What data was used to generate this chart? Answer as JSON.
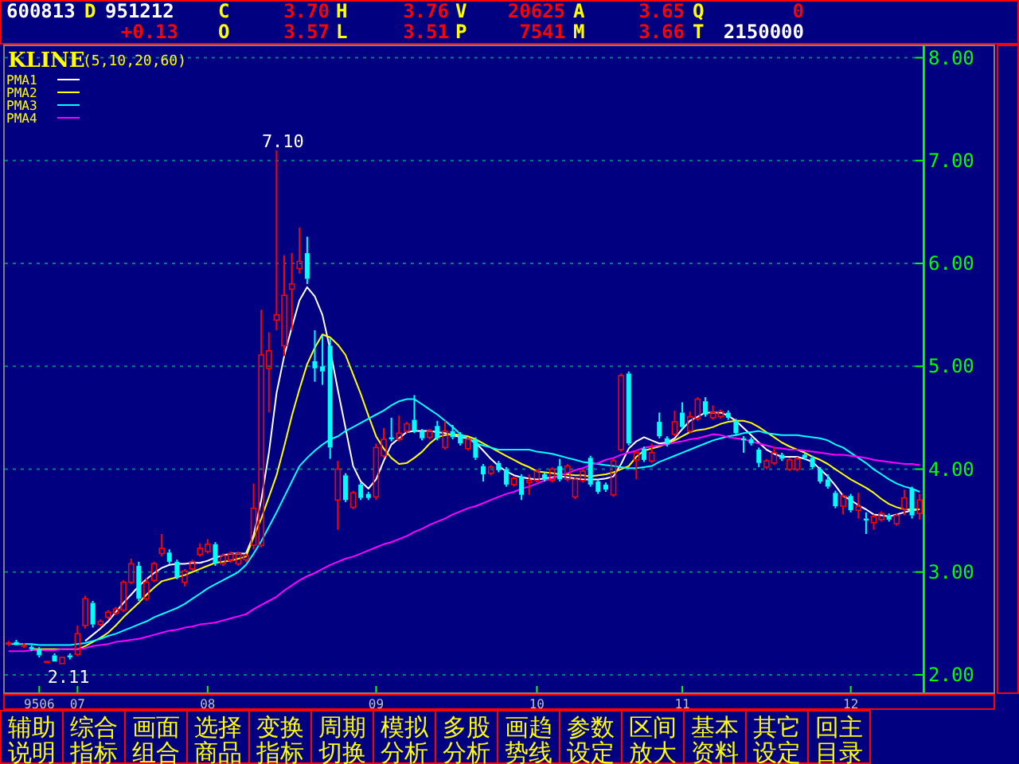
{
  "chart_data": {
    "type": "candlestick",
    "title": "KLINE",
    "subtitle": "(5,10,20,60)",
    "categories": [
      null,
      null,
      null,
      null,
      "9506",
      null,
      null,
      null,
      null,
      "07",
      null,
      null,
      null,
      null,
      null,
      null,
      null,
      null,
      null,
      null,
      null,
      null,
      null,
      null,
      null,
      null,
      "08",
      null,
      null,
      null,
      null,
      null,
      null,
      null,
      null,
      null,
      null,
      null,
      null,
      null,
      null,
      null,
      null,
      null,
      null,
      null,
      null,
      null,
      "09",
      null,
      null,
      null,
      null,
      null,
      null,
      null,
      null,
      null,
      null,
      null,
      null,
      null,
      null,
      null,
      null,
      null,
      null,
      null,
      null,
      "10",
      null,
      null,
      null,
      null,
      null,
      null,
      null,
      null,
      null,
      null,
      null,
      null,
      null,
      null,
      null,
      null,
      null,
      null,
      "11",
      null,
      null,
      null,
      null,
      null,
      null,
      null,
      null,
      null,
      null,
      null,
      null,
      null,
      null,
      null,
      null,
      null,
      null,
      null,
      null,
      null,
      "12",
      null,
      null,
      null,
      null,
      null,
      null,
      null,
      null,
      null
    ],
    "ohlc": [
      [
        2.3,
        2.33,
        2.28,
        2.31
      ],
      [
        2.32,
        2.34,
        2.28,
        2.29
      ],
      [
        2.28,
        2.31,
        2.26,
        2.29
      ],
      [
        2.27,
        2.29,
        2.23,
        2.25
      ],
      [
        2.25,
        2.27,
        2.17,
        2.19
      ],
      [
        2.12,
        2.14,
        2.12,
        2.13
      ],
      [
        2.19,
        2.21,
        2.12,
        2.13
      ],
      [
        2.11,
        2.18,
        2.11,
        2.17
      ],
      [
        2.19,
        2.21,
        2.15,
        2.17
      ],
      [
        2.2,
        2.48,
        2.18,
        2.4
      ],
      [
        2.48,
        2.77,
        2.45,
        2.74
      ],
      [
        2.7,
        2.72,
        2.46,
        2.49
      ],
      [
        2.49,
        2.54,
        2.47,
        2.52
      ],
      [
        2.56,
        2.63,
        2.54,
        2.61
      ],
      [
        2.6,
        2.66,
        2.58,
        2.64
      ],
      [
        2.63,
        2.92,
        2.61,
        2.9
      ],
      [
        2.9,
        3.13,
        2.88,
        3.08
      ],
      [
        3.06,
        3.1,
        2.72,
        2.74
      ],
      [
        2.74,
        2.94,
        2.72,
        2.9
      ],
      [
        2.92,
        3.1,
        2.9,
        3.08
      ],
      [
        3.18,
        3.37,
        3.15,
        3.23
      ],
      [
        3.19,
        3.22,
        3.08,
        3.1
      ],
      [
        3.1,
        3.12,
        2.93,
        2.95
      ],
      [
        2.9,
        3.03,
        2.86,
        3.01
      ],
      [
        3.03,
        3.12,
        3.01,
        3.1
      ],
      [
        3.17,
        3.28,
        3.15,
        3.23
      ],
      [
        3.2,
        3.32,
        3.18,
        3.27
      ],
      [
        3.27,
        3.29,
        3.06,
        3.08
      ],
      [
        3.08,
        3.18,
        3.06,
        3.16
      ],
      [
        3.11,
        3.2,
        3.09,
        3.18
      ],
      [
        3.08,
        3.2,
        3.06,
        3.18
      ],
      [
        3.12,
        3.18,
        3.1,
        3.16
      ],
      [
        3.26,
        3.86,
        3.22,
        3.62
      ],
      [
        3.26,
        5.55,
        3.24,
        5.11
      ],
      [
        4.98,
        5.33,
        4.55,
        5.15
      ],
      [
        5.45,
        7.1,
        5.35,
        5.5
      ],
      [
        5.2,
        6.08,
        5.1,
        5.69
      ],
      [
        5.75,
        6.1,
        5.35,
        5.8
      ],
      [
        5.95,
        6.35,
        5.9,
        6.02
      ],
      [
        6.1,
        6.26,
        5.8,
        5.85
      ],
      [
        5.05,
        5.35,
        4.85,
        4.98
      ],
      [
        5.0,
        5.3,
        4.82,
        4.95
      ],
      [
        5.2,
        5.27,
        4.1,
        4.21
      ],
      [
        3.7,
        4.08,
        3.41,
        4.0
      ],
      [
        3.94,
        3.96,
        3.68,
        3.7
      ],
      [
        3.63,
        3.79,
        3.61,
        3.77
      ],
      [
        3.85,
        3.87,
        3.7,
        3.72
      ],
      [
        3.76,
        3.78,
        3.7,
        3.72
      ],
      [
        3.73,
        4.25,
        3.7,
        4.21
      ],
      [
        4.13,
        4.4,
        4.11,
        4.29
      ],
      [
        4.31,
        4.5,
        4.27,
        4.29
      ],
      [
        4.29,
        4.52,
        4.27,
        4.35
      ],
      [
        4.37,
        4.46,
        4.35,
        4.44
      ],
      [
        4.48,
        4.72,
        4.35,
        4.37
      ],
      [
        4.37,
        4.39,
        4.28,
        4.3
      ],
      [
        4.31,
        4.39,
        4.29,
        4.37
      ],
      [
        4.42,
        4.47,
        4.28,
        4.3
      ],
      [
        4.21,
        4.47,
        4.19,
        4.37
      ],
      [
        4.37,
        4.43,
        4.29,
        4.31
      ],
      [
        4.34,
        4.36,
        4.23,
        4.25
      ],
      [
        4.2,
        4.31,
        4.18,
        4.29
      ],
      [
        4.29,
        4.31,
        4.09,
        4.11
      ],
      [
        4.03,
        4.05,
        3.88,
        3.95
      ],
      [
        3.96,
        4.04,
        3.94,
        4.02
      ],
      [
        4.06,
        4.08,
        3.97,
        3.99
      ],
      [
        4.0,
        4.02,
        3.83,
        3.85
      ],
      [
        3.85,
        3.93,
        3.83,
        3.91
      ],
      [
        3.93,
        3.95,
        3.7,
        3.75
      ],
      [
        3.87,
        3.95,
        3.75,
        3.89
      ],
      [
        3.89,
        4.0,
        3.87,
        3.98
      ],
      [
        3.95,
        3.97,
        3.88,
        3.9
      ],
      [
        3.89,
        4.02,
        3.87,
        4.0
      ],
      [
        4.03,
        4.1,
        3.88,
        3.9
      ],
      [
        3.9,
        4.05,
        3.88,
        4.03
      ],
      [
        3.73,
        3.92,
        3.71,
        3.9
      ],
      [
        3.89,
        4.0,
        3.87,
        3.98
      ],
      [
        4.11,
        4.13,
        3.83,
        3.85
      ],
      [
        3.88,
        3.9,
        3.76,
        3.78
      ],
      [
        3.85,
        3.87,
        3.78,
        3.8
      ],
      [
        3.75,
        4.1,
        3.73,
        4.08
      ],
      [
        4.19,
        4.93,
        4.17,
        4.91
      ],
      [
        4.93,
        4.95,
        4.23,
        4.25
      ],
      [
        4.09,
        4.18,
        3.9,
        4.16
      ],
      [
        4.2,
        4.22,
        4.07,
        4.09
      ],
      [
        4.08,
        4.25,
        4.06,
        4.16
      ],
      [
        4.46,
        4.55,
        4.3,
        4.32
      ],
      [
        4.3,
        4.32,
        4.22,
        4.24
      ],
      [
        4.34,
        4.57,
        4.32,
        4.46
      ],
      [
        4.55,
        4.65,
        4.39,
        4.41
      ],
      [
        4.37,
        4.56,
        4.35,
        4.51
      ],
      [
        4.49,
        4.7,
        4.47,
        4.68
      ],
      [
        4.66,
        4.7,
        4.51,
        4.53
      ],
      [
        4.5,
        4.62,
        4.48,
        4.55
      ],
      [
        4.51,
        4.58,
        4.49,
        4.56
      ],
      [
        4.55,
        4.57,
        4.48,
        4.5
      ],
      [
        4.47,
        4.49,
        4.33,
        4.35
      ],
      [
        4.3,
        4.32,
        4.16,
        4.28
      ],
      [
        4.29,
        4.31,
        4.23,
        4.25
      ],
      [
        4.19,
        4.21,
        4.02,
        4.06
      ],
      [
        4.02,
        4.1,
        4.0,
        4.08
      ],
      [
        4.06,
        4.22,
        4.04,
        4.16
      ],
      [
        4.14,
        4.16,
        4.08,
        4.1
      ],
      [
        4.0,
        4.11,
        3.98,
        4.09
      ],
      [
        4.0,
        4.12,
        3.98,
        4.1
      ],
      [
        4.14,
        4.16,
        4.09,
        4.11
      ],
      [
        4.11,
        4.13,
        4.0,
        4.02
      ],
      [
        4.0,
        4.02,
        3.86,
        3.88
      ],
      [
        3.9,
        3.95,
        3.81,
        3.83
      ],
      [
        3.77,
        3.79,
        3.62,
        3.64
      ],
      [
        3.64,
        3.76,
        3.56,
        3.74
      ],
      [
        3.74,
        3.76,
        3.58,
        3.6
      ],
      [
        3.6,
        3.77,
        3.52,
        3.64
      ],
      [
        3.52,
        3.58,
        3.37,
        3.5
      ],
      [
        3.48,
        3.56,
        3.41,
        3.54
      ],
      [
        3.51,
        3.59,
        3.49,
        3.57
      ],
      [
        3.55,
        3.57,
        3.49,
        3.51
      ],
      [
        3.47,
        3.57,
        3.45,
        3.55
      ],
      [
        3.61,
        3.8,
        3.55,
        3.72
      ],
      [
        3.81,
        3.83,
        3.52,
        3.55
      ],
      [
        3.57,
        3.76,
        3.51,
        3.7
      ]
    ],
    "series": [
      {
        "name": "PMA1",
        "type": "line",
        "color": "#ffffff",
        "values": [
          null,
          null,
          null,
          null,
          null,
          null,
          null,
          null,
          null,
          null,
          2.33,
          2.39,
          2.45,
          2.52,
          2.61,
          2.7,
          2.78,
          2.86,
          2.93,
          2.99,
          3.04,
          3.07,
          3.08,
          3.08,
          3.09,
          3.09,
          3.11,
          3.14,
          3.16,
          3.18,
          3.18,
          3.18,
          3.36,
          3.7,
          4.16,
          4.74,
          5.1,
          5.38,
          5.64,
          5.77,
          5.68,
          5.5,
          5.16,
          4.77,
          4.4,
          4.03,
          3.88,
          3.81,
          3.9,
          4.08,
          4.24,
          4.3,
          4.36,
          4.37,
          4.37,
          4.37,
          4.36,
          4.35,
          4.33,
          4.31,
          4.3,
          4.26,
          4.18,
          4.1,
          4.03,
          3.98,
          3.94,
          3.92,
          3.91,
          3.9,
          3.91,
          3.92,
          3.93,
          3.92,
          3.91,
          3.9,
          3.9,
          3.9,
          3.91,
          3.93,
          4.05,
          4.2,
          4.27,
          4.31,
          4.28,
          4.25,
          4.26,
          4.3,
          4.39,
          4.47,
          4.51,
          4.55,
          4.55,
          4.55,
          4.52,
          4.47,
          4.4,
          4.33,
          4.26,
          4.19,
          4.15,
          4.12,
          4.12,
          4.12,
          4.1,
          4.07,
          4.0,
          3.93,
          3.84,
          3.74,
          3.7,
          3.65,
          3.61,
          3.56,
          3.55,
          3.54,
          3.56,
          3.58,
          3.6,
          3.61
        ]
      },
      {
        "name": "PMA2",
        "type": "line",
        "color": "#ffff00",
        "values": [
          null,
          null,
          null,
          2.25,
          2.25,
          2.25,
          2.25,
          2.25,
          2.25,
          2.25,
          2.28,
          2.32,
          2.36,
          2.41,
          2.48,
          2.56,
          2.63,
          2.7,
          2.78,
          2.85,
          2.91,
          2.93,
          2.95,
          2.97,
          3.0,
          3.03,
          3.06,
          3.09,
          3.1,
          3.11,
          3.13,
          3.15,
          3.34,
          3.52,
          3.73,
          3.94,
          4.22,
          4.52,
          4.78,
          5.02,
          5.18,
          5.31,
          5.28,
          5.21,
          5.11,
          4.92,
          4.73,
          4.52,
          4.32,
          4.2,
          4.11,
          4.05,
          4.06,
          4.11,
          4.17,
          4.25,
          4.31,
          4.33,
          4.34,
          4.33,
          4.32,
          4.29,
          4.25,
          4.21,
          4.17,
          4.13,
          4.09,
          4.05,
          4.02,
          3.98,
          3.97,
          3.96,
          3.95,
          3.95,
          3.94,
          3.94,
          3.93,
          3.94,
          3.95,
          3.97,
          4.0,
          4.03,
          4.12,
          4.18,
          4.2,
          4.22,
          4.25,
          4.28,
          4.32,
          4.36,
          4.38,
          4.39,
          4.41,
          4.44,
          4.46,
          4.47,
          4.47,
          4.45,
          4.41,
          4.36,
          4.31,
          4.26,
          4.22,
          4.19,
          4.16,
          4.12,
          4.09,
          4.05,
          4.0,
          3.95,
          3.9,
          3.86,
          3.82,
          3.77,
          3.71,
          3.66,
          3.63,
          3.61,
          3.61,
          3.61
        ]
      },
      {
        "name": "PMA3",
        "type": "line",
        "color": "#00ffff",
        "values": [
          2.3,
          2.3,
          2.3,
          2.3,
          2.29,
          2.29,
          2.29,
          2.29,
          2.29,
          2.3,
          2.31,
          2.33,
          2.35,
          2.38,
          2.4,
          2.43,
          2.46,
          2.49,
          2.52,
          2.56,
          2.59,
          2.62,
          2.65,
          2.69,
          2.74,
          2.79,
          2.84,
          2.88,
          2.92,
          2.96,
          3.0,
          3.07,
          3.18,
          3.3,
          3.44,
          3.58,
          3.73,
          3.88,
          4.03,
          4.11,
          4.18,
          4.24,
          4.29,
          4.32,
          4.37,
          4.41,
          4.45,
          4.49,
          4.53,
          4.57,
          4.62,
          4.66,
          4.68,
          4.68,
          4.63,
          4.58,
          4.53,
          4.47,
          4.41,
          4.34,
          4.3,
          4.25,
          4.23,
          4.21,
          4.19,
          4.19,
          4.19,
          4.19,
          4.19,
          4.17,
          4.16,
          4.15,
          4.13,
          4.11,
          4.09,
          4.07,
          4.06,
          4.05,
          4.04,
          4.03,
          4.02,
          4.01,
          4.01,
          4.02,
          4.03,
          4.07,
          4.1,
          4.13,
          4.16,
          4.19,
          4.22,
          4.25,
          4.28,
          4.3,
          4.32,
          4.33,
          4.35,
          4.36,
          4.37,
          4.35,
          4.34,
          4.33,
          4.33,
          4.33,
          4.32,
          4.31,
          4.3,
          4.28,
          4.24,
          4.21,
          4.16,
          4.11,
          4.06,
          4.0,
          3.95,
          3.9,
          3.86,
          3.83,
          3.81,
          3.78
        ]
      },
      {
        "name": "PMA4",
        "type": "line",
        "color": "#ff00ff",
        "values": [
          2.23,
          2.23,
          2.23,
          2.24,
          2.24,
          2.24,
          2.24,
          2.25,
          2.25,
          2.25,
          2.26,
          2.28,
          2.29,
          2.3,
          2.32,
          2.33,
          2.34,
          2.35,
          2.37,
          2.39,
          2.41,
          2.43,
          2.44,
          2.46,
          2.47,
          2.49,
          2.5,
          2.51,
          2.53,
          2.55,
          2.57,
          2.59,
          2.64,
          2.68,
          2.72,
          2.76,
          2.82,
          2.87,
          2.92,
          2.96,
          2.99,
          3.03,
          3.07,
          3.1,
          3.13,
          3.15,
          3.18,
          3.21,
          3.24,
          3.27,
          3.29,
          3.32,
          3.35,
          3.39,
          3.42,
          3.46,
          3.49,
          3.52,
          3.56,
          3.59,
          3.62,
          3.64,
          3.67,
          3.7,
          3.73,
          3.76,
          3.78,
          3.81,
          3.83,
          3.86,
          3.89,
          3.91,
          3.94,
          3.96,
          3.99,
          4.01,
          4.04,
          4.06,
          4.09,
          4.11,
          4.14,
          4.16,
          4.18,
          4.21,
          4.22,
          4.23,
          4.24,
          4.26,
          4.27,
          4.29,
          4.3,
          4.32,
          4.34,
          4.33,
          4.31,
          4.3,
          4.29,
          4.27,
          4.25,
          4.23,
          4.21,
          4.2,
          4.19,
          4.19,
          4.18,
          4.17,
          4.16,
          4.15,
          4.14,
          4.14,
          4.13,
          4.12,
          4.11,
          4.09,
          4.08,
          4.07,
          4.06,
          4.05,
          4.05,
          4.04
        ]
      }
    ],
    "ylim": [
      1.83,
      8.12
    ],
    "yticks": [
      {
        "value": 2,
        "label": "2.00"
      },
      {
        "value": 3,
        "label": "3.00"
      },
      {
        "value": 4,
        "label": "4.00"
      },
      {
        "value": 5,
        "label": "5.00"
      },
      {
        "value": 6,
        "label": "6.00"
      },
      {
        "value": 7,
        "label": "7.00"
      },
      {
        "value": 8,
        "label": "8.00"
      }
    ],
    "grid": "y",
    "legend": "top left",
    "annotations": [
      {
        "text": "7.10",
        "y": 7.1
      },
      {
        "text": "2.11",
        "y": 2.11
      },
      "600813",
      "D",
      "951212",
      "C",
      "3.70",
      "H",
      "3.76",
      "V",
      "20625",
      "A",
      "3.65",
      "Q",
      "0",
      "+0.13",
      "O",
      "3.57",
      "L",
      "3.51",
      "P",
      "7541",
      "M",
      "3.66",
      "T",
      "2150000",
      "辅助说明",
      "综合指标",
      "画面组合",
      "选择商品",
      "变换指标",
      "周期切换",
      "模拟分析",
      "多股分析",
      "画趋势线",
      "参数设定",
      "区间放大",
      "基本资料",
      "其它设定",
      "回主目录"
    ]
  }
}
